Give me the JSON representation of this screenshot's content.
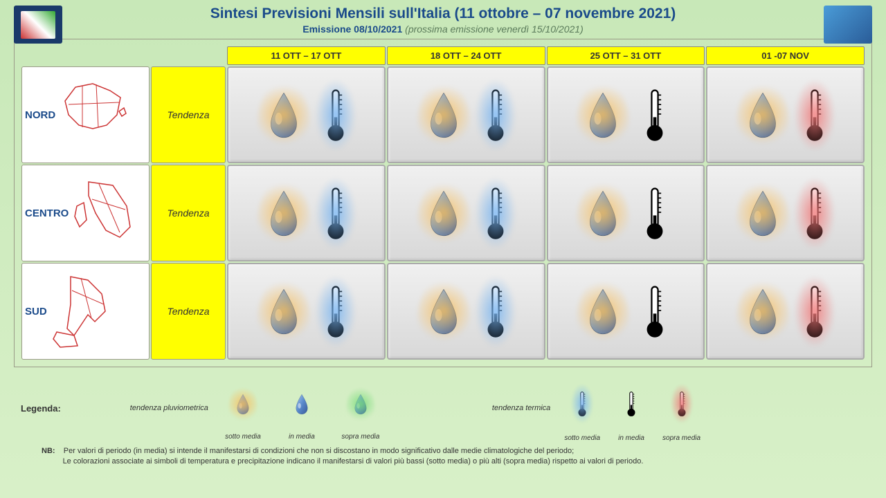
{
  "header": {
    "title": "Sintesi  Previsioni Mensili sull'Italia (11 ottobre – 07 novembre 2021)",
    "subtitle_bold": "Emissione 08/10/2021",
    "subtitle_note": "(prossima emissione venerdì 15/10/2021)"
  },
  "weeks": [
    "11 OTT – 17 OTT",
    "18 OTT – 24 OTT",
    "25 OTT – 31 OTT",
    "01 -07 NOV"
  ],
  "regions": [
    {
      "label": "NORD",
      "tendenza": "Tendenza"
    },
    {
      "label": "CENTRO",
      "tendenza": "Tendenza"
    },
    {
      "label": "SUD",
      "tendenza": "Tendenza"
    }
  ],
  "forecast": {
    "rows": [
      [
        {
          "precip": "sotto",
          "temp": "sotto"
        },
        {
          "precip": "sotto",
          "temp": "sotto"
        },
        {
          "precip": "sotto",
          "temp": "media"
        },
        {
          "precip": "sotto",
          "temp": "sopra"
        }
      ],
      [
        {
          "precip": "sotto",
          "temp": "sotto"
        },
        {
          "precip": "sotto",
          "temp": "sotto"
        },
        {
          "precip": "sotto",
          "temp": "media"
        },
        {
          "precip": "sotto",
          "temp": "sopra"
        }
      ],
      [
        {
          "precip": "sotto",
          "temp": "sotto"
        },
        {
          "precip": "sotto",
          "temp": "sotto"
        },
        {
          "precip": "sotto",
          "temp": "media"
        },
        {
          "precip": "sotto",
          "temp": "sopra"
        }
      ]
    ]
  },
  "legend": {
    "title": "Legenda:",
    "pluvio_label": "tendenza pluviometrica",
    "termica_label": "tendenza termica",
    "sotto": "sotto media",
    "media": "in media",
    "sopra": "sopra media",
    "nb_label": "NB:",
    "nb_line1": "Per valori di periodo (in media) si intende il manifestarsi di condizioni che non si discostano in modo significativo dalle medie climatologiche del periodo;",
    "nb_line2": "Le colorazioni associate ai simboli di temperatura e precipitazione indicano il manifestarsi di valori più bassi (sotto media) o più alti (sopra media) rispetto ai valori di periodo."
  },
  "colors": {
    "bg_top": "#c8e8b8",
    "cell_grey": "#d8d8d8",
    "yellow": "#ffff00",
    "title_blue": "#1a4a8a",
    "glow_sotto_precip": "#f8be5a",
    "glow_sopra_precip": "#78dc78",
    "glow_sotto_temp": "#78b4f0",
    "glow_sopra_temp": "#f07878",
    "drop_blue": "#5a8acc"
  }
}
